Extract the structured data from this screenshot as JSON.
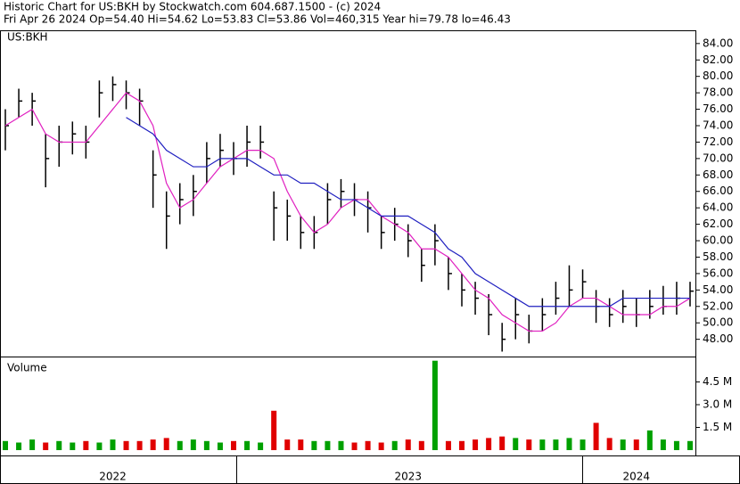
{
  "chart_data": [
    {
      "type": "ohlc",
      "title": "Historic Chart for US:BKH by Stockwatch.com 604.687.1500 - (c) 2024",
      "subtitle": "Fri Apr 26 2024  Op=54.40  Hi=54.62  Lo=53.83  Cl=53.86  Vol=460,315  Year hi=79.78  lo=46.43",
      "label": "US:BKH",
      "color": "#000000",
      "ylim": [
        45.9,
        85.5
      ],
      "yticks": [
        {
          "value": 48,
          "label": "48.00"
        },
        {
          "value": 50,
          "label": "50.00"
        },
        {
          "value": 52,
          "label": "52.00"
        },
        {
          "value": 54,
          "label": "54.00"
        },
        {
          "value": 56,
          "label": "56.00"
        },
        {
          "value": 58,
          "label": "58.00"
        },
        {
          "value": 60,
          "label": "60.00"
        },
        {
          "value": 62,
          "label": "62.00"
        },
        {
          "value": 64,
          "label": "64.00"
        },
        {
          "value": 66,
          "label": "66.00"
        },
        {
          "value": 68,
          "label": "68.00"
        },
        {
          "value": 70,
          "label": "70.00"
        },
        {
          "value": 72,
          "label": "72.00"
        },
        {
          "value": 74,
          "label": "74.00"
        },
        {
          "value": 76,
          "label": "76.00"
        },
        {
          "value": 78,
          "label": "78.00"
        },
        {
          "value": 80,
          "label": "80.00"
        },
        {
          "value": 82,
          "label": "82.00"
        },
        {
          "value": 84,
          "label": "84.00"
        }
      ],
      "high": [
        76,
        78.5,
        78,
        73,
        74,
        74.5,
        74,
        79.5,
        80,
        79.5,
        78.5,
        71,
        66,
        67,
        68,
        72,
        73,
        72,
        74,
        74,
        66,
        65,
        63,
        63,
        67,
        67.5,
        67,
        66,
        63,
        64,
        62,
        59,
        62,
        58,
        56,
        55,
        53.5,
        50,
        53,
        51,
        53,
        55,
        57,
        56.5,
        54,
        53,
        54,
        53,
        54,
        54.5,
        55,
        55
      ],
      "low": [
        71,
        75,
        74,
        66.5,
        69,
        70.5,
        70,
        75,
        77,
        76,
        74,
        64,
        59,
        62,
        63,
        67,
        69,
        68,
        69,
        70,
        60,
        60,
        59,
        59,
        62,
        64,
        63,
        61,
        59,
        60,
        58,
        55,
        57,
        54,
        52,
        51,
        48.5,
        46.5,
        48,
        47.5,
        49,
        51,
        52,
        53,
        50,
        49.5,
        50,
        49.5,
        50.5,
        51,
        51,
        52
      ],
      "close": [
        74,
        77,
        77,
        70,
        72,
        73,
        72,
        78,
        79,
        78,
        77,
        68,
        63,
        65,
        66,
        70,
        71,
        70,
        72,
        72,
        64,
        63,
        61,
        61,
        65,
        66,
        65,
        64,
        61,
        62,
        60,
        57,
        60,
        56,
        54,
        53,
        51,
        48,
        51,
        49,
        51,
        53,
        54,
        55,
        52,
        51,
        52,
        51,
        52,
        52,
        53,
        53.86
      ],
      "series": [
        {
          "color": "#e020c0",
          "values": [
            74,
            75,
            76,
            73,
            72,
            72,
            72,
            74,
            76,
            78,
            77,
            74,
            67,
            64,
            65,
            67,
            69,
            70,
            71,
            71,
            70,
            66,
            63,
            61,
            62,
            64,
            65,
            65,
            63,
            62,
            61,
            59,
            59,
            58,
            56,
            54,
            53,
            51,
            50,
            49,
            49,
            50,
            52,
            53,
            53,
            52,
            51,
            51,
            51,
            52,
            52,
            53
          ]
        },
        {
          "color": "#2020c0",
          "values": [
            null,
            null,
            null,
            null,
            null,
            null,
            null,
            null,
            null,
            75,
            74,
            73,
            71,
            70,
            69,
            69,
            70,
            70,
            70,
            69,
            68,
            68,
            67,
            67,
            66,
            65,
            65,
            64,
            63,
            63,
            63,
            62,
            61,
            59,
            58,
            56,
            55,
            54,
            53,
            52,
            52,
            52,
            52,
            52,
            52,
            52,
            53,
            53,
            53,
            53,
            53,
            53
          ]
        }
      ]
    },
    {
      "type": "bar",
      "label": "Volume",
      "up_color": "#00a000",
      "down_color": "#e00000",
      "ylim": [
        0,
        6
      ],
      "yticks": [
        {
          "value": 1.5,
          "label": "1.5 M"
        },
        {
          "value": 3.0,
          "label": "3.0 M"
        },
        {
          "value": 4.5,
          "label": "4.5 M"
        }
      ],
      "categories": [
        null,
        null,
        null,
        null,
        null,
        null,
        null,
        null,
        "2022",
        null,
        null,
        null,
        null,
        null,
        null,
        null,
        null,
        null,
        null,
        null,
        null,
        null,
        null,
        null,
        null,
        null,
        null,
        null,
        null,
        null,
        "2023",
        null,
        null,
        null,
        null,
        null,
        null,
        null,
        null,
        null,
        null,
        null,
        null,
        null,
        null,
        null,
        null,
        "2024",
        null,
        null,
        null,
        null
      ],
      "values": [
        0.6,
        0.5,
        0.7,
        0.5,
        0.6,
        0.5,
        0.6,
        0.5,
        0.7,
        0.6,
        0.6,
        0.7,
        0.8,
        0.6,
        0.7,
        0.6,
        0.5,
        0.6,
        0.6,
        0.5,
        2.6,
        0.7,
        0.7,
        0.6,
        0.6,
        0.6,
        0.5,
        0.6,
        0.5,
        0.6,
        0.7,
        0.6,
        5.9,
        0.6,
        0.6,
        0.7,
        0.8,
        0.9,
        0.8,
        0.7,
        0.7,
        0.7,
        0.8,
        0.7,
        1.8,
        0.8,
        0.7,
        0.7,
        1.3,
        0.7,
        0.6,
        0.6
      ]
    }
  ]
}
